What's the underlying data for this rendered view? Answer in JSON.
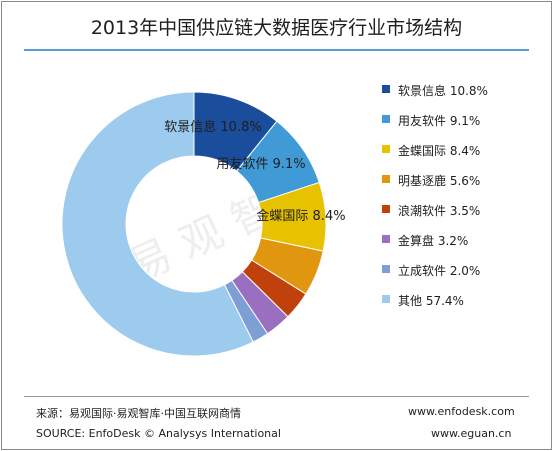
{
  "chart_data": {
    "type": "pie",
    "title": "2013年中国供应链大数据医疗行业市场结构",
    "style": "donut",
    "slices": [
      {
        "name": "软景信息",
        "value": 10.8,
        "label": "10.8%",
        "color": "#1a4d9c"
      },
      {
        "name": "用友软件",
        "value": 9.1,
        "label": "9.1%",
        "color": "#3f9ad6"
      },
      {
        "name": "金蝶国际",
        "value": 8.4,
        "label": "8.4%",
        "color": "#e6c200"
      },
      {
        "name": "明基逐鹿",
        "value": 5.6,
        "label": "5.6%",
        "color": "#e0960f"
      },
      {
        "name": "浪潮软件",
        "value": 3.5,
        "label": "3.5%",
        "color": "#c0410c"
      },
      {
        "name": "金算盘",
        "value": 3.2,
        "label": "3.2%",
        "color": "#9b6fc0"
      },
      {
        "name": "立成软件",
        "value": 2.0,
        "label": "2.0%",
        "color": "#7e9ed6"
      },
      {
        "name": "其他",
        "value": 57.4,
        "label": "57.4%",
        "color": "#9ccbee"
      }
    ],
    "legend_position": "right",
    "data_labels_on_first": 3
  },
  "watermark": "易观智库",
  "footer": {
    "source_cn": "来源：易观国际·易观智库·中国互联网商情",
    "source_en": "SOURCE: EnfoDesk © Analysys International",
    "url1": "www.enfodesk.com",
    "url2": "www.eguan.cn"
  }
}
